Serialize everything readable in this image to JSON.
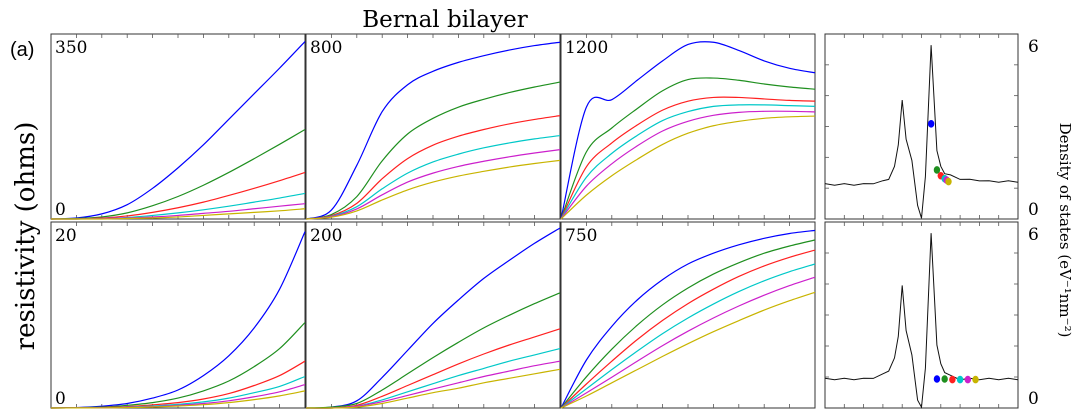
{
  "figure": {
    "title": "Bernal bilayer",
    "panel_label": "(a)",
    "ylabel_left": "resistivity (ohms)",
    "ylabel_right": "Density of states (eV⁻¹nm⁻²)",
    "series_colors": [
      "#0000ff",
      "#1f8f1f",
      "#ff2020",
      "#00c8c8",
      "#cc20cc",
      "#c8b400"
    ]
  },
  "chart_data": [
    {
      "type": "line",
      "max_label": "350",
      "min_label": "0",
      "ylim": [
        0,
        350
      ],
      "x": [
        0,
        0.1,
        0.2,
        0.3,
        0.4,
        0.5,
        0.6,
        0.7,
        0.8,
        0.9,
        1.0
      ],
      "series": [
        {
          "values": [
            0,
            2,
            10,
            28,
            60,
            100,
            145,
            195,
            245,
            295,
            347
          ]
        },
        {
          "values": [
            0,
            1,
            4,
            12,
            26,
            44,
            66,
            91,
            118,
            146,
            175
          ]
        },
        {
          "values": [
            0,
            0,
            2,
            6,
            13,
            22,
            33,
            46,
            60,
            75,
            91
          ]
        },
        {
          "values": [
            0,
            0,
            1,
            3,
            7,
            12,
            18,
            25,
            33,
            41,
            50
          ]
        },
        {
          "values": [
            0,
            0,
            1,
            2,
            4,
            7,
            11,
            15,
            20,
            25,
            30
          ]
        },
        {
          "values": [
            0,
            0,
            0,
            1,
            2,
            4,
            7,
            10,
            13,
            16,
            20
          ]
        }
      ]
    },
    {
      "type": "line",
      "max_label": "800",
      "ylim": [
        0,
        800
      ],
      "x": [
        0,
        0.1,
        0.2,
        0.3,
        0.4,
        0.5,
        0.6,
        0.7,
        0.8,
        0.9,
        1.0
      ],
      "series": [
        {
          "values": [
            0,
            40,
            240,
            480,
            600,
            660,
            700,
            730,
            755,
            775,
            790
          ]
        },
        {
          "values": [
            0,
            20,
            100,
            260,
            380,
            450,
            500,
            535,
            565,
            590,
            612
          ]
        },
        {
          "values": [
            0,
            15,
            70,
            180,
            270,
            330,
            370,
            400,
            425,
            445,
            462
          ]
        },
        {
          "values": [
            0,
            12,
            55,
            135,
            205,
            255,
            290,
            318,
            340,
            358,
            373
          ]
        },
        {
          "values": [
            0,
            10,
            45,
            108,
            165,
            205,
            235,
            258,
            278,
            295,
            310
          ]
        },
        {
          "values": [
            0,
            8,
            36,
            85,
            130,
            165,
            192,
            213,
            232,
            248,
            262
          ]
        }
      ]
    },
    {
      "type": "line",
      "max_label": "1200",
      "ylim": [
        0,
        1200
      ],
      "x": [
        0,
        0.1,
        0.2,
        0.3,
        0.4,
        0.5,
        0.6,
        0.7,
        0.8,
        0.9,
        1.0
      ],
      "series": [
        {
          "values": [
            0,
            750,
            800,
            930,
            1060,
            1170,
            1185,
            1130,
            1060,
            1010,
            980
          ]
        },
        {
          "values": [
            0,
            450,
            610,
            740,
            860,
            935,
            945,
            930,
            905,
            885,
            870
          ]
        },
        {
          "values": [
            0,
            350,
            510,
            630,
            730,
            790,
            815,
            815,
            805,
            795,
            790
          ]
        },
        {
          "values": [
            0,
            280,
            440,
            560,
            660,
            720,
            755,
            765,
            765,
            760,
            755
          ]
        },
        {
          "values": [
            0,
            220,
            370,
            490,
            590,
            655,
            695,
            715,
            722,
            722,
            718
          ]
        },
        {
          "values": [
            0,
            160,
            290,
            400,
            500,
            575,
            625,
            655,
            675,
            685,
            690
          ]
        }
      ]
    },
    {
      "type": "line",
      "max_label": "20",
      "min_label": "0",
      "ylim": [
        0,
        20
      ],
      "x": [
        0,
        0.1,
        0.2,
        0.3,
        0.4,
        0.5,
        0.6,
        0.7,
        0.8,
        0.9,
        1.0
      ],
      "series": [
        {
          "values": [
            0,
            0.05,
            0.2,
            0.5,
            1.1,
            2.0,
            3.6,
            5.8,
            8.9,
            13.2,
            19.6
          ]
        },
        {
          "values": [
            0,
            0.03,
            0.1,
            0.3,
            0.6,
            1.1,
            1.9,
            3.0,
            4.6,
            6.6,
            9.5
          ]
        },
        {
          "values": [
            0,
            0.02,
            0.06,
            0.15,
            0.35,
            0.6,
            1.0,
            1.6,
            2.5,
            3.6,
            5.2
          ]
        },
        {
          "values": [
            0,
            0.01,
            0.04,
            0.1,
            0.22,
            0.4,
            0.68,
            1.1,
            1.7,
            2.4,
            3.5
          ]
        },
        {
          "values": [
            0,
            0.01,
            0.03,
            0.07,
            0.15,
            0.3,
            0.5,
            0.8,
            1.25,
            1.8,
            2.6
          ]
        },
        {
          "values": [
            0,
            0.01,
            0.02,
            0.05,
            0.11,
            0.22,
            0.37,
            0.6,
            0.93,
            1.35,
            1.9
          ]
        }
      ]
    },
    {
      "type": "line",
      "max_label": "200",
      "ylim": [
        0,
        200
      ],
      "x": [
        0,
        0.1,
        0.2,
        0.3,
        0.4,
        0.5,
        0.6,
        0.7,
        0.8,
        0.9,
        1.0
      ],
      "series": [
        {
          "values": [
            0,
            1,
            8,
            34,
            64,
            94,
            120,
            144,
            164,
            183,
            200
          ]
        },
        {
          "values": [
            0,
            1,
            5,
            20,
            38,
            56,
            73,
            89,
            103,
            116,
            128
          ]
        },
        {
          "values": [
            0,
            0,
            3,
            13,
            25,
            37,
            49,
            60,
            70,
            79,
            88
          ]
        },
        {
          "values": [
            0,
            0,
            2,
            9,
            18,
            27,
            36,
            44,
            52,
            59,
            66
          ]
        },
        {
          "values": [
            0,
            0,
            2,
            7,
            14,
            21,
            28,
            35,
            41,
            47,
            52
          ]
        },
        {
          "values": [
            0,
            0,
            1,
            5,
            11,
            17,
            22,
            28,
            33,
            38,
            43
          ]
        }
      ]
    },
    {
      "type": "line",
      "max_label": "750",
      "ylim": [
        0,
        750
      ],
      "x": [
        0,
        0.1,
        0.2,
        0.3,
        0.4,
        0.5,
        0.6,
        0.7,
        0.8,
        0.9,
        1.0
      ],
      "series": [
        {
          "values": [
            0,
            200,
            340,
            450,
            535,
            600,
            645,
            680,
            707,
            727,
            740
          ]
        },
        {
          "values": [
            0,
            130,
            245,
            345,
            430,
            500,
            558,
            605,
            645,
            675,
            700
          ]
        },
        {
          "values": [
            0,
            100,
            195,
            285,
            365,
            435,
            495,
            548,
            592,
            628,
            658
          ]
        },
        {
          "values": [
            0,
            80,
            160,
            237,
            310,
            375,
            433,
            485,
            530,
            568,
            600
          ]
        },
        {
          "values": [
            0,
            63,
            128,
            195,
            260,
            320,
            375,
            425,
            470,
            510,
            545
          ]
        },
        {
          "values": [
            0,
            50,
            105,
            160,
            215,
            268,
            318,
            364,
            408,
            447,
            482
          ]
        }
      ]
    },
    {
      "type": "line",
      "name_hint": "dos_top",
      "max_label": "6",
      "min_label": "0",
      "ylim": [
        0,
        6
      ],
      "x": [
        0,
        0.05,
        0.1,
        0.15,
        0.2,
        0.25,
        0.3,
        0.33,
        0.36,
        0.38,
        0.4,
        0.42,
        0.45,
        0.48,
        0.5,
        0.52,
        0.55,
        0.58,
        0.6,
        0.62,
        0.65,
        0.7,
        0.75,
        0.8,
        0.85,
        0.9,
        0.95,
        1.0
      ],
      "values": [
        1.2,
        1.2,
        1.2,
        1.2,
        1.2,
        1.25,
        1.3,
        1.4,
        1.8,
        2.6,
        4.1,
        2.8,
        2.0,
        0.5,
        0.0,
        1.5,
        6.0,
        2.4,
        1.8,
        1.6,
        1.5,
        1.4,
        1.35,
        1.35,
        1.3,
        1.3,
        1.3,
        1.3
      ],
      "points": [
        [
          0.55,
          3.3
        ],
        [
          0.58,
          1.7
        ],
        [
          0.6,
          1.5
        ],
        [
          0.62,
          1.4
        ],
        [
          0.63,
          1.35
        ],
        [
          0.64,
          1.3
        ]
      ]
    },
    {
      "type": "line",
      "name_hint": "dos_bottom",
      "max_label": "6",
      "min_label": "0",
      "ylim": [
        0,
        6
      ],
      "x": [
        0,
        0.05,
        0.1,
        0.15,
        0.2,
        0.25,
        0.3,
        0.33,
        0.36,
        0.38,
        0.4,
        0.42,
        0.45,
        0.48,
        0.5,
        0.52,
        0.55,
        0.58,
        0.6,
        0.62,
        0.65,
        0.7,
        0.75,
        0.8,
        0.85,
        0.9,
        0.95,
        1.0
      ],
      "values": [
        1.0,
        1.0,
        1.0,
        1.0,
        1.0,
        1.05,
        1.15,
        1.3,
        1.7,
        2.5,
        4.2,
        2.7,
        1.8,
        0.3,
        0.0,
        1.4,
        6.0,
        2.2,
        1.5,
        1.25,
        1.1,
        1.0,
        1.0,
        1.0,
        1.0,
        1.0,
        1.0,
        1.0
      ],
      "points": [
        [
          0.58,
          1.0
        ],
        [
          0.62,
          1.0
        ],
        [
          0.66,
          0.98
        ],
        [
          0.7,
          0.98
        ],
        [
          0.74,
          0.98
        ],
        [
          0.78,
          0.98
        ]
      ]
    }
  ]
}
